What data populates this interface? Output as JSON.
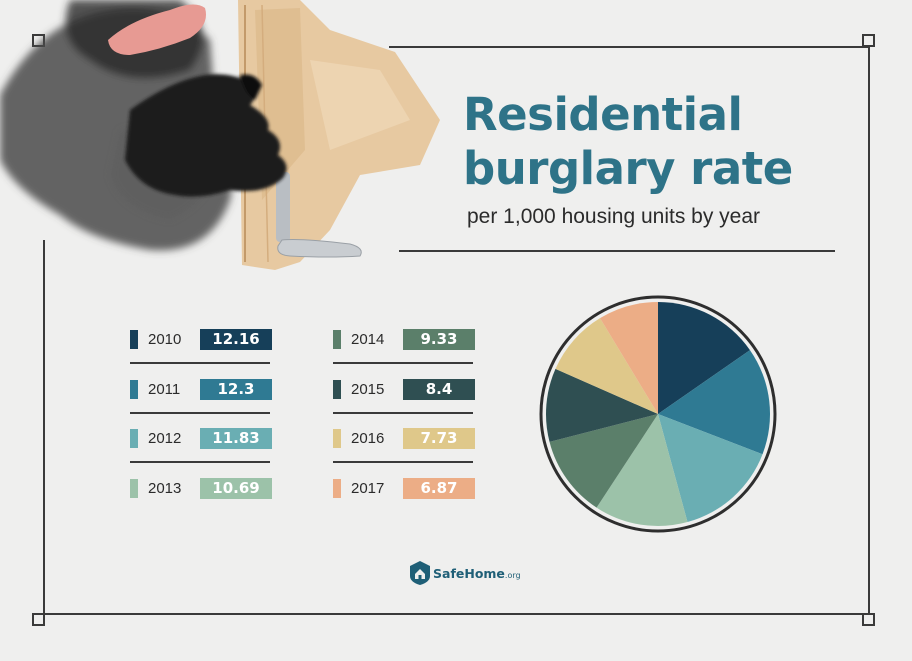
{
  "title": {
    "line1": "Residential",
    "line2": "burglary rate"
  },
  "subtitle": "per 1,000 housing units by year",
  "logo": {
    "name": "SafeHome",
    "suffix": ".org"
  },
  "colors": {
    "2010": "#163f59",
    "2011": "#2f7a93",
    "2012": "#6aaeb3",
    "2013": "#9cc2a9",
    "2014": "#5b7f6a",
    "2015": "#2f4f52",
    "2016": "#dfc88a",
    "2017": "#ecad86"
  },
  "chart_data": {
    "type": "pie",
    "title": "Residential burglary rate",
    "subtitle": "per 1,000 housing units by year",
    "categories": [
      "2010",
      "2011",
      "2012",
      "2013",
      "2014",
      "2015",
      "2016",
      "2017"
    ],
    "values": [
      12.16,
      12.3,
      11.83,
      10.69,
      9.33,
      8.4,
      7.73,
      6.87
    ],
    "value_labels": [
      "12.16",
      "12.3",
      "11.83",
      "10.69",
      "9.33",
      "8.4",
      "7.73",
      "6.87"
    ],
    "legend_placement": "left"
  }
}
